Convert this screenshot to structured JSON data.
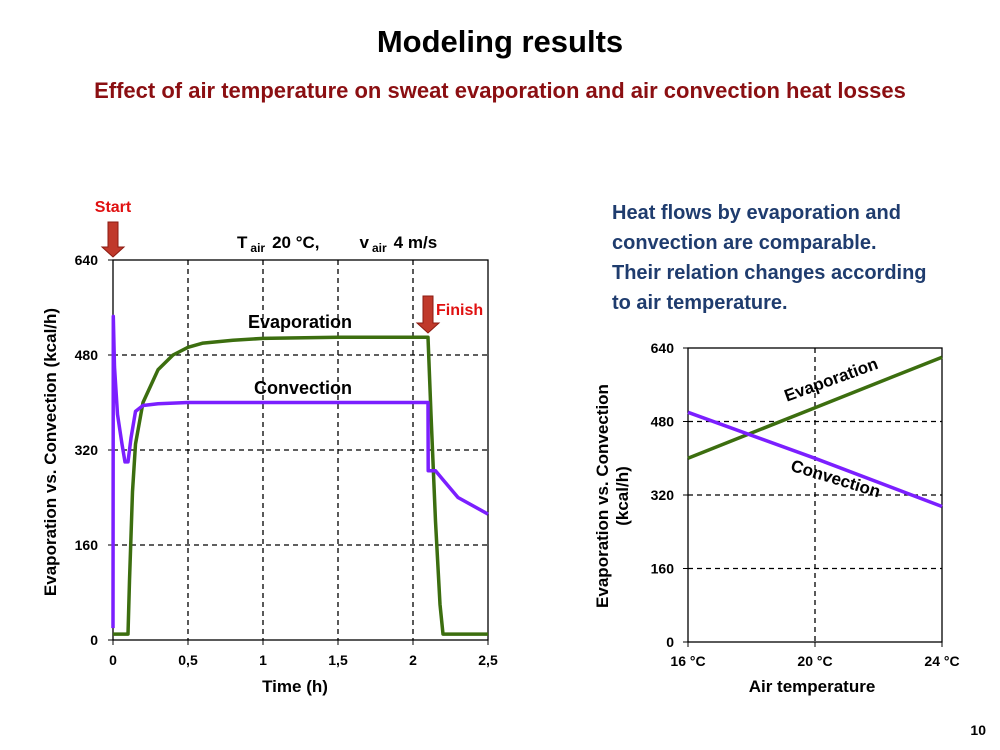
{
  "page": {
    "title": "Modeling results",
    "subtitle": "Effect of air temperature on sweat evaporation and  air convection heat losses",
    "note_lines": [
      "Heat flows  by evaporation and",
      "convection are comparable.",
      "Their relation changes according",
      "to air temperature."
    ],
    "page_number": "10"
  },
  "colors": {
    "evaporation": "#3c6e0f",
    "convection": "#7b1fff",
    "marker": "#c0392b",
    "grid": "#000000"
  },
  "left_chart": {
    "start_label": "Start",
    "finish_label": "Finish",
    "condition": {
      "t": "T",
      "t_sub": "air",
      "t_val": "20 °C,",
      "v": "v",
      "v_sub": "air",
      "v_val": "4 m/s"
    },
    "series_labels": {
      "evaporation": "Evaporation",
      "convection": "Convection"
    }
  },
  "right_chart": {
    "series_labels": {
      "evaporation": "Evaporation",
      "convection": "Convection"
    }
  },
  "chart_data": [
    {
      "type": "line",
      "xlabel": "Time (h)",
      "ylabel": "Evaporation  vs.  Convection  (kcal/h)",
      "xlim": [
        0,
        2.5
      ],
      "ylim": [
        0,
        640
      ],
      "x_ticks": [
        "0",
        "0,5",
        "1",
        "1,5",
        "2",
        "2,5"
      ],
      "y_ticks": [
        "0",
        "160",
        "320",
        "480",
        "640"
      ],
      "grid": true,
      "start_x": 0,
      "finish_x": 2.1,
      "series": [
        {
          "name": "Evaporation",
          "x": [
            0,
            0.1,
            0.11,
            0.13,
            0.15,
            0.2,
            0.3,
            0.4,
            0.5,
            0.6,
            0.8,
            1.0,
            1.5,
            2.0,
            2.1,
            2.12,
            2.15,
            2.18,
            2.2,
            2.5
          ],
          "y": [
            10,
            10,
            100,
            250,
            330,
            400,
            455,
            480,
            493,
            500,
            505,
            508,
            510,
            510,
            510,
            380,
            200,
            60,
            10,
            10
          ]
        },
        {
          "name": "Convection",
          "x": [
            0,
            0.002,
            0.01,
            0.03,
            0.06,
            0.08,
            0.1,
            0.12,
            0.15,
            0.2,
            0.3,
            0.5,
            1.0,
            2.09,
            2.1,
            2.101,
            2.15,
            2.2,
            2.3,
            2.5
          ],
          "y": [
            20,
            545,
            460,
            380,
            330,
            300,
            300,
            340,
            385,
            395,
            398,
            400,
            400,
            400,
            400,
            285,
            285,
            270,
            240,
            212
          ]
        }
      ]
    },
    {
      "type": "line",
      "xlabel": "Air temperature",
      "ylabel": "Evaporation  vs.  Convection  (kcal/h)",
      "categories": [
        "16 °C",
        "20 °C",
        "24 °C"
      ],
      "x": [
        16,
        20,
        24
      ],
      "ylim": [
        0,
        640
      ],
      "y_ticks": [
        "0",
        "160",
        "320",
        "480",
        "640"
      ],
      "grid": true,
      "series": [
        {
          "name": "Evaporation",
          "values": [
            400,
            510,
            620
          ]
        },
        {
          "name": "Convection",
          "values": [
            500,
            400,
            295
          ]
        }
      ]
    }
  ]
}
